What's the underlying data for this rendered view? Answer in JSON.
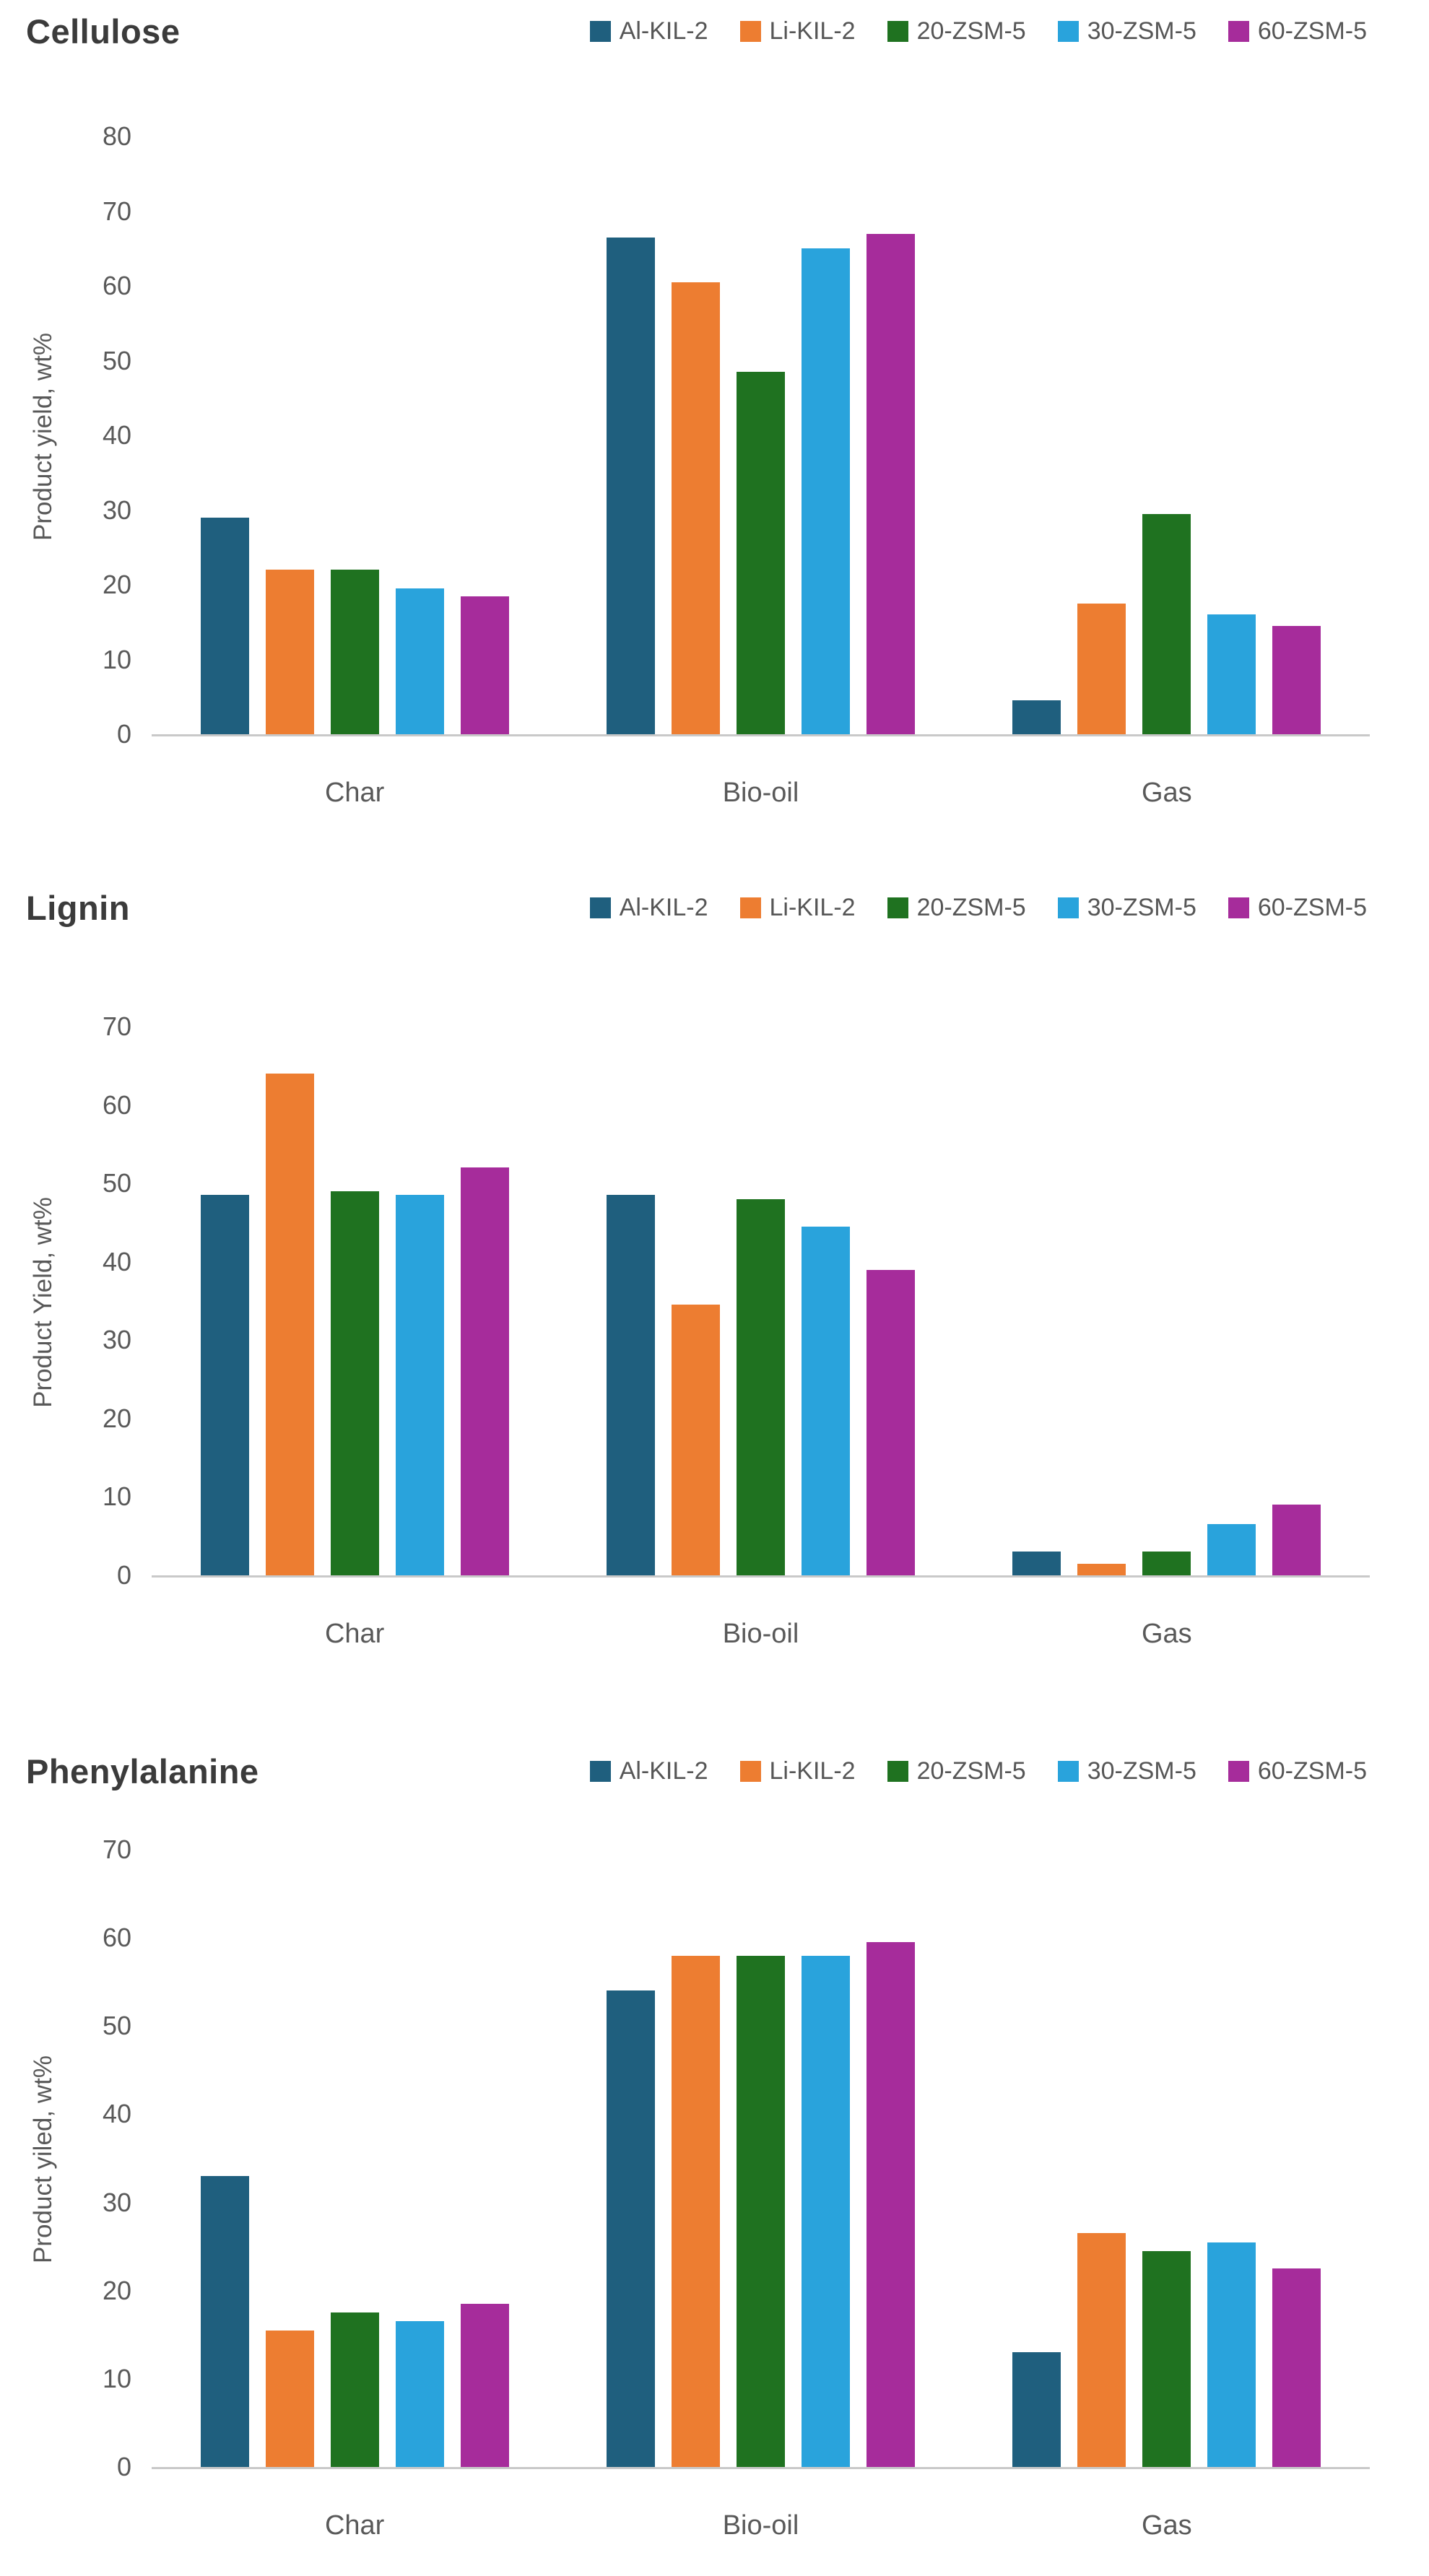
{
  "chart_data": [
    {
      "type": "bar",
      "title": "Cellulose",
      "ylabel": "Product yield, wt%",
      "ylim": [
        0,
        80
      ],
      "ystep": 10,
      "grid": false,
      "legend_position": "top-right",
      "categories": [
        "Char",
        "Bio-oil",
        "Gas"
      ],
      "series": [
        {
          "name": "Al-KIL-2",
          "color": "#1F5F7E",
          "values": [
            29,
            66.5,
            4.5
          ]
        },
        {
          "name": "Li-KIL-2",
          "color": "#ED7D31",
          "values": [
            22,
            60.5,
            17.5
          ]
        },
        {
          "name": "20-ZSM-5",
          "color": "#1F7220",
          "values": [
            22,
            48.5,
            29.5
          ]
        },
        {
          "name": "30-ZSM-5",
          "color": "#29A3DC",
          "values": [
            19.5,
            65,
            16
          ]
        },
        {
          "name": "60-ZSM-5",
          "color": "#A62C9B",
          "values": [
            18.5,
            67,
            14.5
          ]
        }
      ]
    },
    {
      "type": "bar",
      "title": "Lignin",
      "ylabel": "Product Yield, wt%",
      "ylim": [
        0,
        70
      ],
      "ystep": 10,
      "grid": false,
      "legend_position": "top-right",
      "categories": [
        "Char",
        "Bio-oil",
        "Gas"
      ],
      "series": [
        {
          "name": "Al-KIL-2",
          "color": "#1F5F7E",
          "values": [
            48.5,
            48.5,
            3
          ]
        },
        {
          "name": "Li-KIL-2",
          "color": "#ED7D31",
          "values": [
            64,
            34.5,
            1.5
          ]
        },
        {
          "name": "20-ZSM-5",
          "color": "#1F7220",
          "values": [
            49,
            48,
            3
          ]
        },
        {
          "name": "30-ZSM-5",
          "color": "#29A3DC",
          "values": [
            48.5,
            44.5,
            6.5
          ]
        },
        {
          "name": "60-ZSM-5",
          "color": "#A62C9B",
          "values": [
            52,
            39,
            9
          ]
        }
      ]
    },
    {
      "type": "bar",
      "title": "Phenylalanine",
      "ylabel": "Product yiled, wt%",
      "ylim": [
        0,
        70
      ],
      "ystep": 10,
      "grid": false,
      "legend_position": "top-right",
      "categories": [
        "Char",
        "Bio-oil",
        "Gas"
      ],
      "series": [
        {
          "name": "Al-KIL-2",
          "color": "#1F5F7E",
          "values": [
            33,
            54,
            13
          ]
        },
        {
          "name": "Li-KIL-2",
          "color": "#ED7D31",
          "values": [
            15.5,
            58,
            26.5
          ]
        },
        {
          "name": "20-ZSM-5",
          "color": "#1F7220",
          "values": [
            17.5,
            58,
            24.5
          ]
        },
        {
          "name": "30-ZSM-5",
          "color": "#29A3DC",
          "values": [
            16.5,
            58,
            25.5
          ]
        },
        {
          "name": "60-ZSM-5",
          "color": "#A62C9B",
          "values": [
            18.5,
            59.5,
            22.5
          ]
        }
      ]
    }
  ]
}
